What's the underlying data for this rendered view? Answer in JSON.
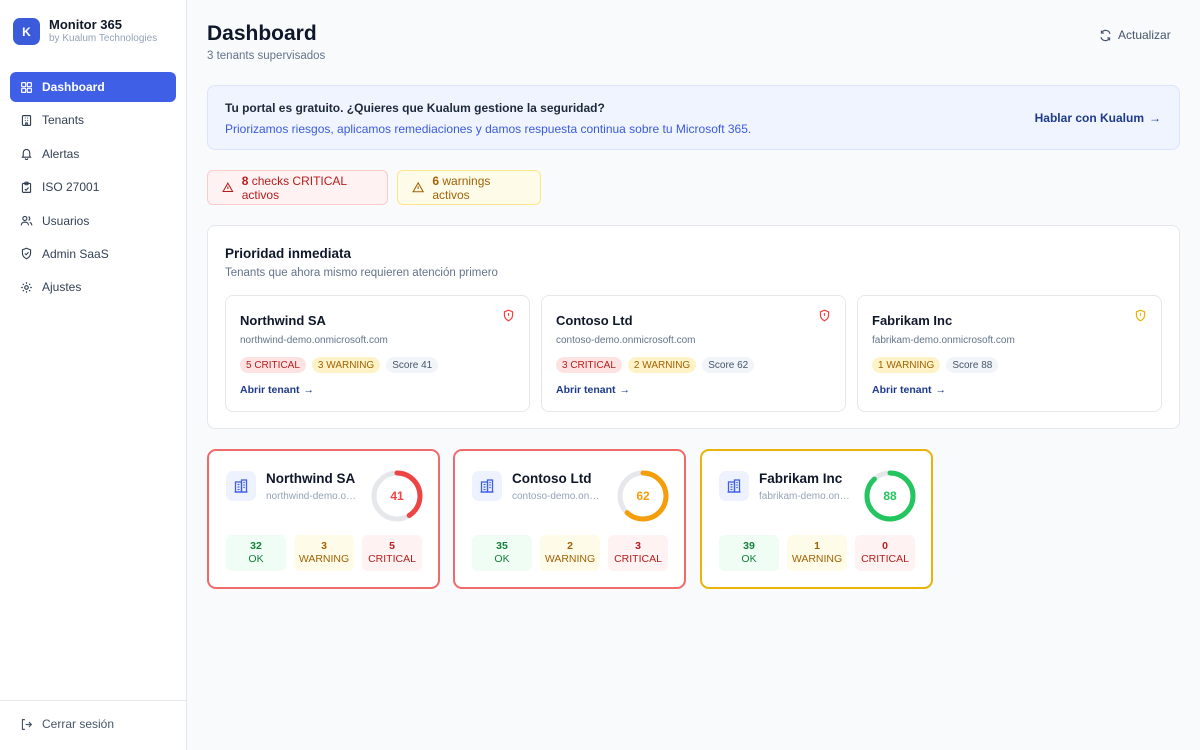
{
  "brand": {
    "logo_letter": "K",
    "name": "Monitor 365",
    "subtitle": "by Kualum Technologies"
  },
  "sidebar": {
    "items": [
      {
        "label": "Dashboard",
        "icon": "grid-icon",
        "active": true
      },
      {
        "label": "Tenants",
        "icon": "building-icon"
      },
      {
        "label": "Alertas",
        "icon": "bell-icon"
      },
      {
        "label": "ISO 27001",
        "icon": "clipboard-icon"
      },
      {
        "label": "Usuarios",
        "icon": "users-icon"
      },
      {
        "label": "Admin SaaS",
        "icon": "shield-icon"
      },
      {
        "label": "Ajustes",
        "icon": "gear-icon"
      }
    ],
    "logout_label": "Cerrar sesión"
  },
  "header": {
    "title": "Dashboard",
    "subtitle": "3 tenants supervisados",
    "refresh_label": "Actualizar"
  },
  "banner": {
    "title": "Tu portal es gratuito. ¿Quieres que Kualum gestione la seguridad?",
    "text": "Priorizamos riesgos, aplicamos remediaciones y damos respuesta continua sobre tu Microsoft 365.",
    "link": "Hablar con Kualum"
  },
  "alerts": {
    "critical_count": "8",
    "critical_text": "checks CRITICAL activos",
    "warning_count": "6",
    "warning_text": "warnings activos"
  },
  "priority": {
    "title": "Prioridad inmediata",
    "subtitle": "Tenants que ahora mismo requieren atención primero",
    "cards": [
      {
        "name": "Northwind SA",
        "domain": "northwind-demo.onmicrosoft.com",
        "critical": "5 CRITICAL",
        "warning": "3 WARNING",
        "score": "Score 41",
        "link": "Abrir tenant"
      },
      {
        "name": "Contoso Ltd",
        "domain": "contoso-demo.onmicrosoft.com",
        "critical": "3 CRITICAL",
        "warning": "2 WARNING",
        "score": "Score 62",
        "link": "Abrir tenant"
      },
      {
        "name": "Fabrikam Inc",
        "domain": "fabrikam-demo.onmicrosoft.com",
        "warning": "1 WARNING",
        "score": "Score 88",
        "link": "Abrir tenant"
      }
    ]
  },
  "tenants": [
    {
      "name": "Northwind SA",
      "domain": "northwind-demo.onmicrosoft.com",
      "score": 41,
      "ok": "32",
      "warning": "3",
      "critical": "5",
      "border_color": "#ef6a6a",
      "gauge_color": "#ef4444"
    },
    {
      "name": "Contoso Ltd",
      "domain": "contoso-demo.onmicrosoft.com",
      "score": 62,
      "ok": "35",
      "warning": "2",
      "critical": "3",
      "border_color": "#ef6a6a",
      "gauge_color": "#f59e0b"
    },
    {
      "name": "Fabrikam Inc",
      "domain": "fabrikam-demo.onmicrosoft.com",
      "score": 88,
      "ok": "39",
      "warning": "1",
      "critical": "0",
      "border_color": "#eab308",
      "gauge_color": "#22c55e"
    }
  ],
  "stat_labels": {
    "ok": "OK",
    "warning": "WARNING",
    "critical": "CRITICAL"
  },
  "colors": {
    "accent": "#3f5fe6",
    "critical": "#ef4444",
    "warning": "#f59e0b",
    "ok": "#22c55e"
  }
}
